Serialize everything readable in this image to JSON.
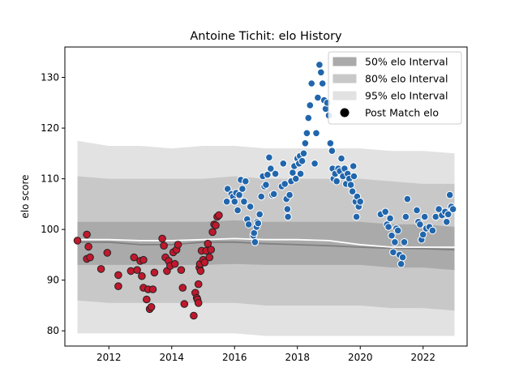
{
  "chart_data": {
    "type": "scatter",
    "title": "Antoine Tichit: elo History",
    "xlabel": "",
    "ylabel": "elo score",
    "xlim": [
      2010.6,
      2023.4
    ],
    "ylim": [
      77,
      136
    ],
    "xticks": [
      2012,
      2014,
      2016,
      2018,
      2020,
      2022
    ],
    "yticks": [
      80,
      90,
      100,
      110,
      120,
      130
    ],
    "grid": false,
    "legend_position": "top-right",
    "legend": [
      {
        "label": "50% elo Interval",
        "color": "#aaaaaa"
      },
      {
        "label": "80% elo Interval",
        "color": "#c8c8c8"
      },
      {
        "label": "95% elo Interval",
        "color": "#e2e2e2"
      },
      {
        "label": "Post Match elo",
        "color": "#000000"
      }
    ],
    "colors": {
      "loss": "#c0182d",
      "win": "#2166ac",
      "median": "#ffffff",
      "mean": "#808080"
    },
    "band_x": [
      2011.0,
      2012.0,
      2013.0,
      2014.0,
      2015.0,
      2016.0,
      2017.0,
      2018.0,
      2019.0,
      2020.0,
      2021.0,
      2022.0,
      2023.0
    ],
    "bands": {
      "p95_hi": [
        117.5,
        116.5,
        116.5,
        116,
        116.5,
        116.5,
        116,
        116,
        116,
        116,
        115.5,
        115.5,
        115
      ],
      "p80_hi": [
        110.5,
        110,
        110,
        110,
        110,
        110.5,
        110,
        110,
        110,
        110,
        109.5,
        109,
        109
      ],
      "p50_hi": [
        101.5,
        101.5,
        101.5,
        101.5,
        101.5,
        101.8,
        101.5,
        101.5,
        101.5,
        101.5,
        101,
        101,
        100.5
      ],
      "p50_lo": [
        93,
        93,
        93,
        93,
        93,
        93.2,
        93,
        93,
        93,
        93,
        92.5,
        92.5,
        92
      ],
      "p80_lo": [
        86,
        85.5,
        85.5,
        85.5,
        85.5,
        85.5,
        85,
        85,
        85,
        85,
        84.5,
        84.5,
        84
      ],
      "p95_lo": [
        79.5,
        79.5,
        79.5,
        79.5,
        79.5,
        79.5,
        79,
        79,
        79,
        79,
        79,
        79,
        79
      ]
    },
    "median_line": [
      98,
      98,
      97.8,
      97.8,
      98,
      98.2,
      98,
      98,
      97.8,
      97,
      96.5,
      96.5,
      96.5
    ],
    "mean_line": [
      97.5,
      97.5,
      97,
      97,
      97.5,
      97.5,
      97.2,
      97,
      96.8,
      96.5,
      96.3,
      96.2,
      96
    ],
    "series": [
      {
        "name": "Post Match elo",
        "group": "loss",
        "points": [
          [
            2011.0,
            97.8
          ],
          [
            2011.3,
            99
          ],
          [
            2011.35,
            96.6
          ],
          [
            2011.3,
            94.2
          ],
          [
            2011.4,
            94.5
          ],
          [
            2011.75,
            92.2
          ],
          [
            2011.95,
            95.4
          ],
          [
            2012.3,
            88.8
          ],
          [
            2012.3,
            91
          ],
          [
            2012.7,
            91.8
          ],
          [
            2012.8,
            94.5
          ],
          [
            2012.9,
            92
          ],
          [
            2013.0,
            93.8
          ],
          [
            2013.05,
            90.8
          ],
          [
            2013.1,
            94
          ],
          [
            2013.1,
            88.5
          ],
          [
            2013.2,
            86.2
          ],
          [
            2013.3,
            84.3
          ],
          [
            2013.35,
            84.7
          ],
          [
            2013.25,
            88.2
          ],
          [
            2013.4,
            88.2
          ],
          [
            2013.45,
            91.5
          ],
          [
            2013.7,
            98.2
          ],
          [
            2013.75,
            96.8
          ],
          [
            2013.8,
            94.5
          ],
          [
            2013.85,
            91.8
          ],
          [
            2013.9,
            93.8
          ],
          [
            2013.95,
            92.8
          ],
          [
            2014.05,
            95.5
          ],
          [
            2014.1,
            93.2
          ],
          [
            2014.15,
            96
          ],
          [
            2014.2,
            97
          ],
          [
            2014.3,
            92
          ],
          [
            2014.35,
            88.5
          ],
          [
            2014.4,
            85.3
          ],
          [
            2014.7,
            83
          ],
          [
            2014.75,
            87.5
          ],
          [
            2014.8,
            86.5
          ],
          [
            2014.82,
            86.2
          ],
          [
            2014.85,
            85.5
          ],
          [
            2014.85,
            89.2
          ],
          [
            2014.88,
            92.5
          ],
          [
            2014.9,
            93.2
          ],
          [
            2014.92,
            91.8
          ],
          [
            2014.95,
            95.8
          ],
          [
            2015.0,
            94
          ],
          [
            2015.05,
            93.5
          ],
          [
            2015.1,
            95.8
          ],
          [
            2015.15,
            97.2
          ],
          [
            2015.2,
            94.5
          ],
          [
            2015.25,
            96
          ],
          [
            2015.3,
            99.5
          ],
          [
            2015.35,
            101
          ],
          [
            2015.4,
            100.8
          ],
          [
            2015.45,
            102.5
          ],
          [
            2015.5,
            102.8
          ]
        ]
      },
      {
        "name": "Post Match elo",
        "group": "win",
        "points": [
          [
            2015.75,
            105.5
          ],
          [
            2015.78,
            108
          ],
          [
            2015.9,
            107
          ],
          [
            2015.95,
            106.5
          ],
          [
            2016.0,
            105.5
          ],
          [
            2016.05,
            107.2
          ],
          [
            2016.1,
            103.8
          ],
          [
            2016.15,
            106.8
          ],
          [
            2016.2,
            109.8
          ],
          [
            2016.25,
            108
          ],
          [
            2016.3,
            105.5
          ],
          [
            2016.35,
            109.5
          ],
          [
            2016.4,
            102
          ],
          [
            2016.45,
            101
          ],
          [
            2016.5,
            104.5
          ],
          [
            2016.6,
            98.8
          ],
          [
            2016.62,
            99.3
          ],
          [
            2016.65,
            97.5
          ],
          [
            2016.7,
            100.5
          ],
          [
            2016.72,
            101.5
          ],
          [
            2016.75,
            101.2
          ],
          [
            2016.8,
            103
          ],
          [
            2016.85,
            106.5
          ],
          [
            2016.9,
            110.5
          ],
          [
            2016.95,
            108.5
          ],
          [
            2017.0,
            108.8
          ],
          [
            2017.05,
            110.8
          ],
          [
            2017.1,
            114.2
          ],
          [
            2017.15,
            112
          ],
          [
            2017.2,
            106.8
          ],
          [
            2017.25,
            107
          ],
          [
            2017.3,
            111
          ],
          [
            2017.5,
            108.5
          ],
          [
            2017.55,
            113
          ],
          [
            2017.6,
            109
          ],
          [
            2017.65,
            106
          ],
          [
            2017.68,
            104
          ],
          [
            2017.7,
            102.5
          ],
          [
            2017.75,
            106.8
          ],
          [
            2017.8,
            109.5
          ],
          [
            2017.85,
            111.2
          ],
          [
            2017.9,
            112.5
          ],
          [
            2017.95,
            110
          ],
          [
            2018.0,
            114
          ],
          [
            2018.05,
            113
          ],
          [
            2018.08,
            114.5
          ],
          [
            2018.1,
            111
          ],
          [
            2018.15,
            113.5
          ],
          [
            2018.2,
            115
          ],
          [
            2018.25,
            117
          ],
          [
            2018.3,
            119
          ],
          [
            2018.35,
            122
          ],
          [
            2018.4,
            124.5
          ],
          [
            2018.45,
            128.8
          ],
          [
            2018.55,
            113
          ],
          [
            2018.6,
            119
          ],
          [
            2018.65,
            126
          ],
          [
            2018.7,
            132.5
          ],
          [
            2018.75,
            131
          ],
          [
            2018.8,
            128.8
          ],
          [
            2018.85,
            125.5
          ],
          [
            2018.9,
            123.8
          ],
          [
            2018.95,
            125
          ],
          [
            2019.0,
            122.5
          ],
          [
            2019.05,
            117
          ],
          [
            2019.1,
            115.5
          ],
          [
            2019.12,
            112
          ],
          [
            2019.15,
            110
          ],
          [
            2019.2,
            111
          ],
          [
            2019.25,
            109.5
          ],
          [
            2019.3,
            112
          ],
          [
            2019.35,
            111.5
          ],
          [
            2019.4,
            114
          ],
          [
            2019.45,
            110.5
          ],
          [
            2019.5,
            112
          ],
          [
            2019.55,
            109
          ],
          [
            2019.6,
            111
          ],
          [
            2019.65,
            110
          ],
          [
            2019.7,
            108.8
          ],
          [
            2019.75,
            107.5
          ],
          [
            2019.78,
            112.5
          ],
          [
            2019.8,
            110.5
          ],
          [
            2019.85,
            105.5
          ],
          [
            2019.88,
            102.5
          ],
          [
            2019.9,
            106.5
          ],
          [
            2019.95,
            104.5
          ],
          [
            2020.0,
            105.5
          ],
          [
            2020.65,
            103
          ],
          [
            2020.8,
            103.5
          ],
          [
            2020.85,
            101
          ],
          [
            2020.9,
            100.5
          ],
          [
            2020.95,
            102.2
          ],
          [
            2021.0,
            98.8
          ],
          [
            2021.05,
            95.5
          ],
          [
            2021.1,
            97.5
          ],
          [
            2021.15,
            100.2
          ],
          [
            2021.2,
            99.8
          ],
          [
            2021.25,
            95
          ],
          [
            2021.3,
            93.2
          ],
          [
            2021.35,
            94.5
          ],
          [
            2021.4,
            97.5
          ],
          [
            2021.45,
            102.5
          ],
          [
            2021.5,
            106
          ],
          [
            2021.8,
            103.8
          ],
          [
            2021.85,
            101.5
          ],
          [
            2021.9,
            101
          ],
          [
            2021.95,
            98
          ],
          [
            2022.0,
            99
          ],
          [
            2022.05,
            102.5
          ],
          [
            2022.1,
            100.2
          ],
          [
            2022.2,
            100.5
          ],
          [
            2022.3,
            99.8
          ],
          [
            2022.4,
            102.5
          ],
          [
            2022.5,
            104
          ],
          [
            2022.6,
            102.8
          ],
          [
            2022.7,
            103.5
          ],
          [
            2022.75,
            101.5
          ],
          [
            2022.8,
            103
          ],
          [
            2022.85,
            106.8
          ],
          [
            2022.9,
            104.5
          ],
          [
            2022.95,
            104
          ]
        ]
      }
    ]
  }
}
